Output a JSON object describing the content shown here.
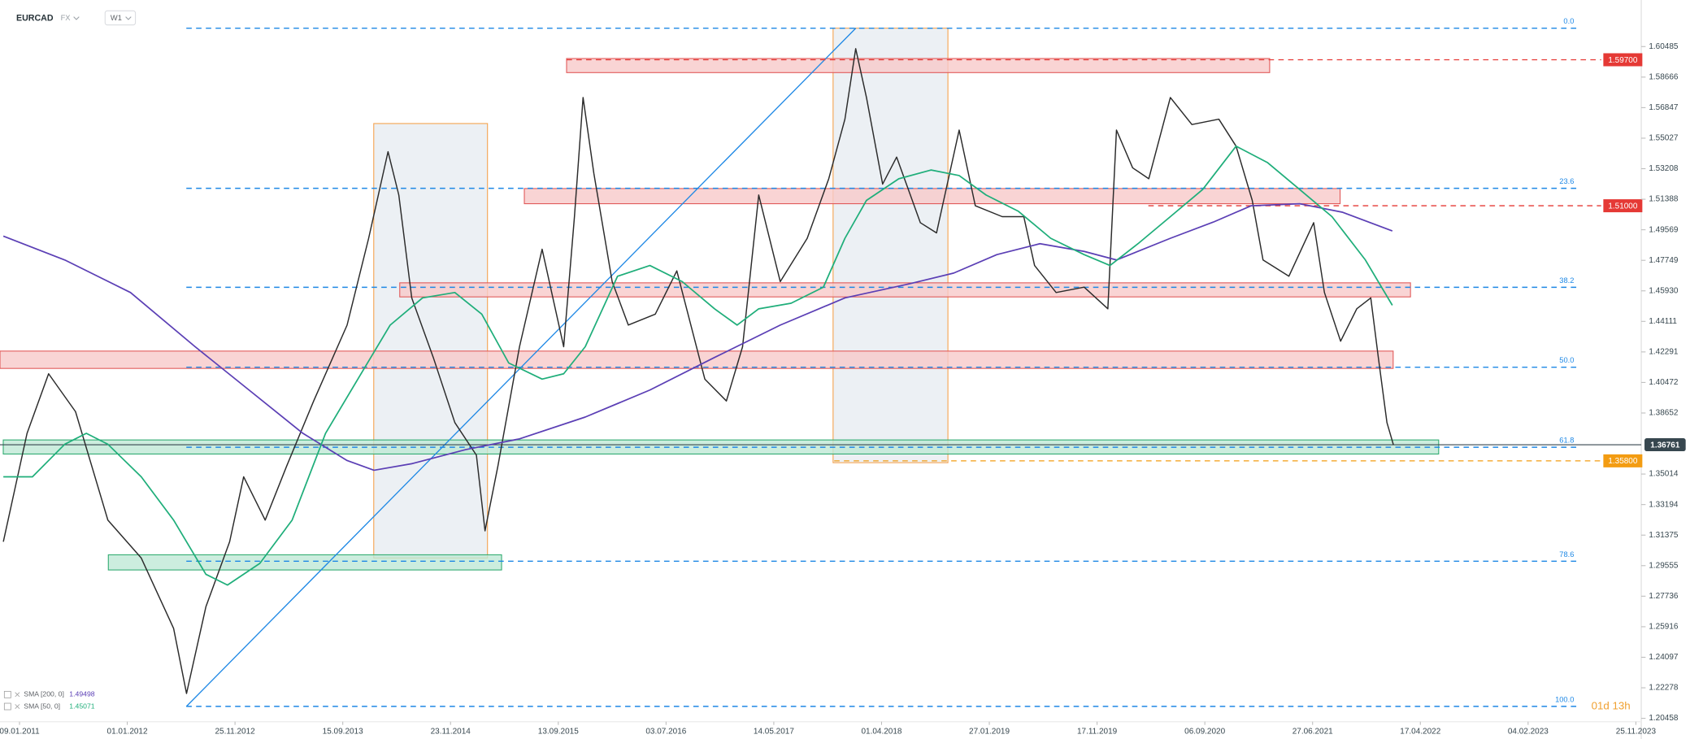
{
  "chart_data": {
    "type": "line",
    "symbol": "EURCAD",
    "market": "FX",
    "timeframe": "W1",
    "countdown": "01d 13h",
    "xlim": [
      -0.181,
      15.05
    ],
    "xticks": [
      {
        "value": 0,
        "label": "09.01.2011"
      },
      {
        "value": 1,
        "label": "01.01.2012"
      },
      {
        "value": 2,
        "label": "25.11.2012"
      },
      {
        "value": 3,
        "label": "15.09.2013"
      },
      {
        "value": 4,
        "label": "23.11.2014"
      },
      {
        "value": 5,
        "label": "13.09.2015"
      },
      {
        "value": 6,
        "label": "03.07.2016"
      },
      {
        "value": 7,
        "label": "14.05.2017"
      },
      {
        "value": 8,
        "label": "01.04.2018"
      },
      {
        "value": 9,
        "label": "27.01.2019"
      },
      {
        "value": 10,
        "label": "17.11.2019"
      },
      {
        "value": 11,
        "label": "06.09.2020"
      },
      {
        "value": 12,
        "label": "27.06.2021"
      },
      {
        "value": 13,
        "label": "17.04.2022"
      },
      {
        "value": 14,
        "label": "04.02.2023"
      },
      {
        "value": 15,
        "label": "25.11.2023"
      }
    ],
    "ylim": [
      1.2026,
      1.6326
    ],
    "yticks": [
      1.60485,
      1.58666,
      1.56847,
      1.55027,
      1.53208,
      1.51388,
      1.49569,
      1.47749,
      {
        "value": 1.4593,
        "label": "1.45930"
      },
      1.44111,
      1.42291,
      1.40472,
      1.38652,
      1.35014,
      1.33194,
      1.31375,
      1.29555,
      1.27736,
      1.25916,
      1.24097,
      1.22278,
      1.20458
    ],
    "series": [
      {
        "color": "#2b2b2b",
        "x": [
          -0.15,
          0.07,
          0.27,
          0.52,
          0.82,
          1.13,
          1.43,
          1.55,
          1.73,
          1.95,
          2.08,
          2.28,
          2.48,
          2.73,
          3.04,
          3.24,
          3.42,
          3.52,
          3.64,
          3.84,
          4.04,
          4.24,
          4.32,
          4.44,
          4.64,
          4.85,
          5.05,
          5.15,
          5.23,
          5.33,
          5.5,
          5.65,
          5.9,
          6.1,
          6.36,
          6.56,
          6.71,
          6.86,
          7.06,
          7.31,
          7.51,
          7.66,
          7.76,
          7.86,
          8.01,
          8.14,
          8.36,
          8.51,
          8.72,
          8.87,
          9.12,
          9.32,
          9.42,
          9.62,
          9.88,
          10.1,
          10.18,
          10.33,
          10.48,
          10.68,
          10.88,
          11.13,
          11.29,
          11.44,
          11.54,
          11.78,
          12.01,
          12.11,
          12.26,
          12.41,
          12.54,
          12.61,
          12.69,
          12.75
        ],
        "values": [
          1.3098,
          1.3744,
          1.4099,
          1.3873,
          1.3227,
          1.3001,
          1.2582,
          1.2194,
          1.2711,
          1.3098,
          1.3485,
          1.3227,
          1.355,
          1.3937,
          1.4389,
          1.4906,
          1.5422,
          1.5164,
          1.4551,
          1.4196,
          1.3808,
          1.3614,
          1.3163,
          1.355,
          1.426,
          1.4841,
          1.426,
          1.5035,
          1.5745,
          1.5293,
          1.4648,
          1.4389,
          1.4454,
          1.4712,
          1.4067,
          1.3937,
          1.426,
          1.5164,
          1.4648,
          1.4906,
          1.5261,
          1.5616,
          1.6036,
          1.5745,
          1.5229,
          1.539,
          1.4999,
          1.4938,
          1.5551,
          1.51,
          1.5035,
          1.5035,
          1.4744,
          1.4583,
          1.4615,
          1.4486,
          1.5551,
          1.5326,
          1.5261,
          1.5745,
          1.5584,
          1.5616,
          1.5455,
          1.5132,
          1.4777,
          1.468,
          1.4999,
          1.4583,
          1.4293,
          1.4486,
          1.4551,
          1.4196,
          1.3808,
          1.36761
        ]
      },
      {
        "name": "SMA [200, 0]",
        "last": 1.49498,
        "color": "#5b3fb5",
        "x": [
          -0.15,
          0.42,
          1.03,
          1.63,
          2.13,
          2.63,
          3.04,
          3.29,
          3.64,
          4.14,
          4.64,
          5.25,
          5.85,
          6.45,
          7.06,
          7.66,
          8.26,
          8.67,
          9.07,
          9.47,
          9.88,
          10.18,
          10.68,
          11.08,
          11.43,
          11.88,
          12.28,
          12.74
        ],
        "values": [
          1.4919,
          1.4777,
          1.4583,
          1.426,
          1.4002,
          1.3744,
          1.3582,
          1.3524,
          1.3563,
          1.3647,
          1.3711,
          1.3841,
          1.4002,
          1.4196,
          1.4389,
          1.4551,
          1.4635,
          1.4699,
          1.4809,
          1.4874,
          1.4828,
          1.4777,
          1.4906,
          1.5003,
          1.51,
          1.5112,
          1.5061,
          1.495
        ]
      },
      {
        "name": "SMA [50, 0]",
        "last": 1.45071,
        "color": "#1fae7a",
        "x": [
          -0.15,
          0.12,
          0.42,
          0.62,
          0.82,
          1.13,
          1.43,
          1.73,
          1.93,
          2.23,
          2.53,
          2.84,
          3.14,
          3.44,
          3.74,
          4.04,
          4.29,
          4.54,
          4.85,
          5.05,
          5.25,
          5.55,
          5.85,
          6.15,
          6.45,
          6.66,
          6.86,
          7.16,
          7.46,
          7.66,
          7.86,
          8.16,
          8.46,
          8.72,
          8.97,
          9.27,
          9.57,
          9.88,
          10.12,
          10.38,
          10.68,
          10.98,
          11.29,
          11.58,
          11.88,
          12.18,
          12.49,
          12.74
        ],
        "values": [
          1.3485,
          1.3485,
          1.3679,
          1.3744,
          1.3679,
          1.3485,
          1.3227,
          1.2904,
          1.284,
          1.2969,
          1.3227,
          1.3744,
          1.4067,
          1.4389,
          1.4551,
          1.4583,
          1.4454,
          1.4163,
          1.4067,
          1.4099,
          1.426,
          1.468,
          1.4744,
          1.4648,
          1.4486,
          1.4389,
          1.4486,
          1.4519,
          1.4615,
          1.4906,
          1.5132,
          1.5261,
          1.5313,
          1.528,
          1.5164,
          1.5067,
          1.4906,
          1.4809,
          1.4744,
          1.4874,
          1.5035,
          1.5197,
          1.5455,
          1.5358,
          1.5197,
          1.5035,
          1.4777,
          1.4507
        ]
      }
    ],
    "levels": [
      {
        "label": "0.0",
        "value": 1.6158
      },
      {
        "label": "23.6",
        "value": 1.5204
      },
      {
        "label": "38.2",
        "value": 1.4614
      },
      {
        "label": "50.0",
        "value": 1.4138
      },
      {
        "label": "61.8",
        "value": 1.3661
      },
      {
        "label": "78.6",
        "value": 1.2982
      },
      {
        "label": "100.0",
        "value": 1.2117
      }
    ],
    "price_labels": [
      {
        "value": 1.597,
        "label": "1.59700",
        "color": "#e53935"
      },
      {
        "value": 1.51,
        "label": "1.51000",
        "color": "#e53935"
      },
      {
        "value": 1.358,
        "label": "1.35800",
        "color": "#f39c12"
      },
      {
        "value": 1.36761,
        "label": "1.36761",
        "color": "#37474f"
      }
    ]
  }
}
